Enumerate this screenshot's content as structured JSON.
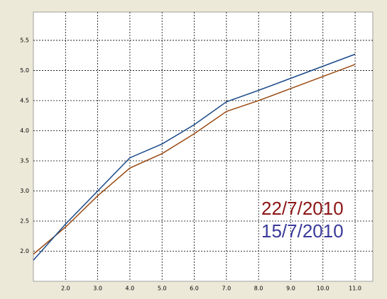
{
  "chart_data": {
    "type": "line",
    "x": [
      1,
      2,
      3,
      4,
      5,
      6,
      7,
      8,
      9,
      10,
      11
    ],
    "series": [
      {
        "name": "22/7/2010",
        "color": "#9a4a12",
        "label_color": "#8b1515",
        "values": [
          1.95,
          2.4,
          2.92,
          3.38,
          3.62,
          3.95,
          4.32,
          4.5,
          4.7,
          4.9,
          5.1
        ]
      },
      {
        "name": "15/7/2010",
        "color": "#1a4a8a",
        "label_color": "#3a3a9a",
        "values": [
          1.85,
          2.45,
          3.0,
          3.55,
          3.78,
          4.1,
          4.48,
          4.67,
          4.87,
          5.07,
          5.27
        ]
      }
    ],
    "xlim": [
      1,
      11.55
    ],
    "ylim": [
      1.5,
      5.97
    ],
    "xticks": [
      {
        "value": 2,
        "label": "2.0"
      },
      {
        "value": 3,
        "label": "3.0"
      },
      {
        "value": 4,
        "label": "4.0"
      },
      {
        "value": 5,
        "label": "5.0"
      },
      {
        "value": 6,
        "label": "6.0"
      },
      {
        "value": 7,
        "label": "7.0"
      },
      {
        "value": 8,
        "label": "8.0"
      },
      {
        "value": 9,
        "label": "9.0"
      },
      {
        "value": 10,
        "label": "10.0"
      },
      {
        "value": 11,
        "label": "11.0"
      }
    ],
    "yticks": [
      {
        "value": 2,
        "label": "2.0"
      },
      {
        "value": 2.5,
        "label": "2.5"
      },
      {
        "value": 3,
        "label": "3.0"
      },
      {
        "value": 3.5,
        "label": "3.5"
      },
      {
        "value": 4,
        "label": "4.0"
      },
      {
        "value": 4.5,
        "label": "4.5"
      },
      {
        "value": 5,
        "label": "5.0"
      },
      {
        "value": 5.5,
        "label": "5.5"
      }
    ],
    "grid": true
  }
}
